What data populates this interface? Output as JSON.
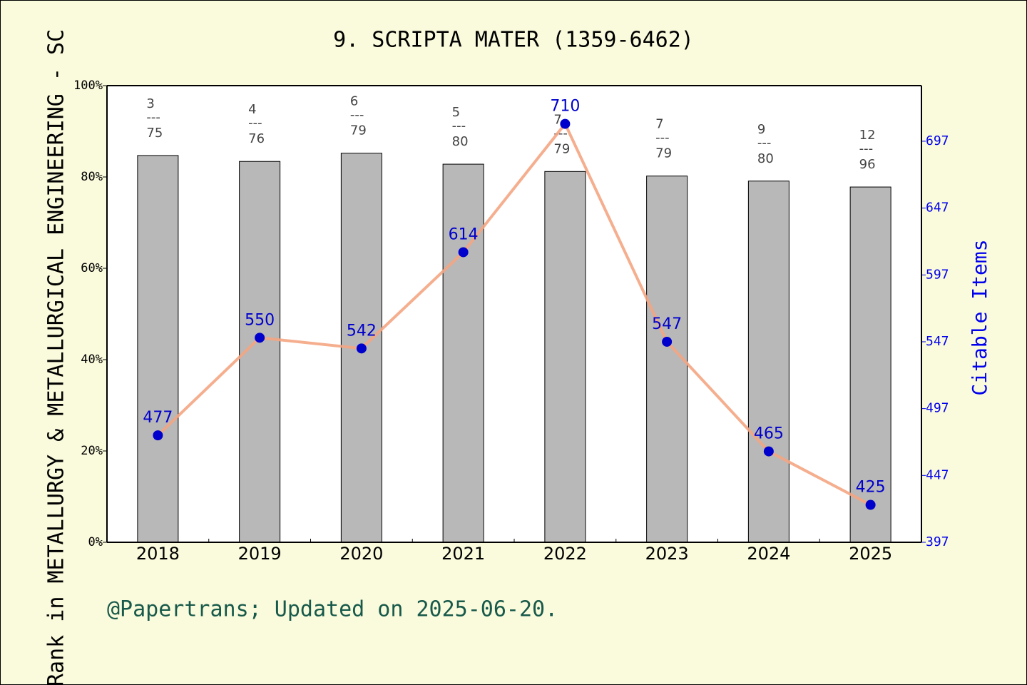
{
  "chart_data": {
    "type": "bar",
    "title": "9. SCRIPTA MATER (1359-6462)",
    "y_label": "Rank in METALLURGY & METALLURGICAL ENGINEERING - SC",
    "y2_label": "Citable Items",
    "footer": "@Papertrans; Updated on 2025-06-20.",
    "categories": [
      "2018",
      "2019",
      "2020",
      "2021",
      "2022",
      "2023",
      "2024",
      "2025"
    ],
    "series": [
      {
        "type": "bar",
        "color": "#b8b8b8",
        "values": [
          84.7,
          83.4,
          85.2,
          82.8,
          81.2,
          80.2,
          79.1,
          77.8
        ]
      },
      {
        "type": "line",
        "axis": "y2",
        "color": "#f4a582",
        "marker_color": "#0000cc",
        "values": [
          477,
          550,
          542,
          614,
          710,
          547,
          465,
          425
        ]
      }
    ],
    "rank_labels": [
      {
        "rank": 3,
        "total": 75
      },
      {
        "rank": 4,
        "total": 76
      },
      {
        "rank": 6,
        "total": 79
      },
      {
        "rank": 5,
        "total": 80
      },
      {
        "rank": 7,
        "total": 79
      },
      {
        "rank": 7,
        "total": 79
      },
      {
        "rank": 9,
        "total": 80
      },
      {
        "rank": 12,
        "total": 96
      }
    ],
    "rank_separator": "---",
    "ylim": [
      0,
      100
    ],
    "yticks": [
      {
        "value": 0,
        "label": "0%"
      },
      {
        "value": 20,
        "label": "20%"
      },
      {
        "value": 40,
        "label": "40%"
      },
      {
        "value": 60,
        "label": "60%"
      },
      {
        "value": 80,
        "label": "80%"
      },
      {
        "value": 100,
        "label": "100%"
      }
    ],
    "y2lim": [
      397,
      738.6
    ],
    "y2ticks": [
      397,
      447,
      497,
      547,
      597,
      647,
      697
    ]
  }
}
